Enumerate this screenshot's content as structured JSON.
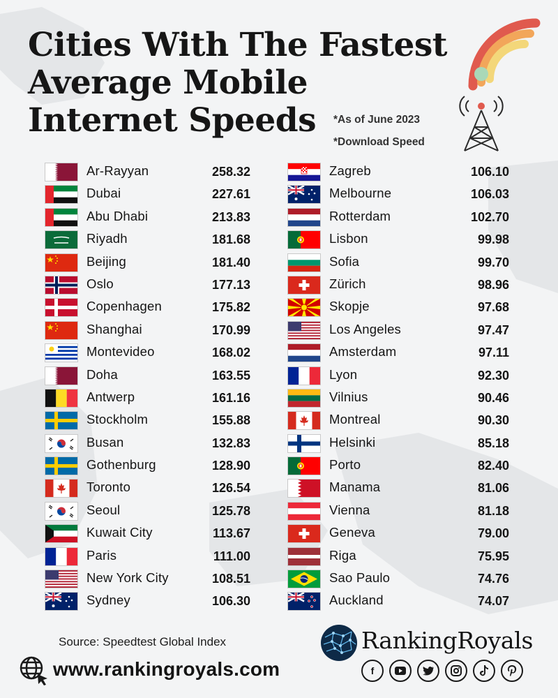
{
  "title": [
    "Cities With The Fastest",
    "Average Mobile",
    "Internet Speeds"
  ],
  "notes": [
    "*As of June 2023",
    "*Download Speed"
  ],
  "left_column": [
    {
      "city": "Ar-Rayyan",
      "speed": "258.32",
      "flag": "qatar"
    },
    {
      "city": "Dubai",
      "speed": "227.61",
      "flag": "uae"
    },
    {
      "city": "Abu Dhabi",
      "speed": "213.83",
      "flag": "uae"
    },
    {
      "city": "Riyadh",
      "speed": "181.68",
      "flag": "saudi"
    },
    {
      "city": "Beijing",
      "speed": "181.40",
      "flag": "china"
    },
    {
      "city": "Oslo",
      "speed": "177.13",
      "flag": "norway"
    },
    {
      "city": "Copenhagen",
      "speed": "175.82",
      "flag": "denmark"
    },
    {
      "city": "Shanghai",
      "speed": "170.99",
      "flag": "china"
    },
    {
      "city": "Montevideo",
      "speed": "168.02",
      "flag": "uruguay"
    },
    {
      "city": "Doha",
      "speed": "163.55",
      "flag": "qatar"
    },
    {
      "city": "Antwerp",
      "speed": "161.16",
      "flag": "belgium"
    },
    {
      "city": "Stockholm",
      "speed": "155.88",
      "flag": "sweden"
    },
    {
      "city": "Busan",
      "speed": "132.83",
      "flag": "korea"
    },
    {
      "city": "Gothenburg",
      "speed": "128.90",
      "flag": "sweden"
    },
    {
      "city": "Toronto",
      "speed": "126.54",
      "flag": "canada"
    },
    {
      "city": "Seoul",
      "speed": "125.78",
      "flag": "korea"
    },
    {
      "city": "Kuwait City",
      "speed": "113.67",
      "flag": "kuwait"
    },
    {
      "city": "Paris",
      "speed": "111.00",
      "flag": "france"
    },
    {
      "city": "New York City",
      "speed": "108.51",
      "flag": "usa"
    },
    {
      "city": "Sydney",
      "speed": "106.30",
      "flag": "australia"
    }
  ],
  "right_column": [
    {
      "city": "Zagreb",
      "speed": "106.10",
      "flag": "croatia"
    },
    {
      "city": "Melbourne",
      "speed": "106.03",
      "flag": "australia"
    },
    {
      "city": "Rotterdam",
      "speed": "102.70",
      "flag": "netherlands"
    },
    {
      "city": "Lisbon",
      "speed": "99.98",
      "flag": "portugal"
    },
    {
      "city": "Sofia",
      "speed": "99.70",
      "flag": "bulgaria"
    },
    {
      "city": "Zürich",
      "speed": "98.96",
      "flag": "switzerland"
    },
    {
      "city": "Skopje",
      "speed": "97.68",
      "flag": "macedonia"
    },
    {
      "city": "Los Angeles",
      "speed": "97.47",
      "flag": "usa"
    },
    {
      "city": "Amsterdam",
      "speed": "97.11",
      "flag": "netherlands"
    },
    {
      "city": "Lyon",
      "speed": "92.30",
      "flag": "france"
    },
    {
      "city": "Vilnius",
      "speed": "90.46",
      "flag": "lithuania"
    },
    {
      "city": "Montreal",
      "speed": "90.30",
      "flag": "canada"
    },
    {
      "city": "Helsinki",
      "speed": "85.18",
      "flag": "finland"
    },
    {
      "city": "Porto",
      "speed": "82.40",
      "flag": "portugal"
    },
    {
      "city": "Manama",
      "speed": "81.06",
      "flag": "bahrain"
    },
    {
      "city": "Vienna",
      "speed": "81.18",
      "flag": "austria"
    },
    {
      "city": "Geneva",
      "speed": "79.00",
      "flag": "switzerland"
    },
    {
      "city": "Riga",
      "speed": "75.95",
      "flag": "latvia"
    },
    {
      "city": "Sao Paulo",
      "speed": "74.76",
      "flag": "brazil"
    },
    {
      "city": "Auckland",
      "speed": "74.07",
      "flag": "newzealand"
    }
  ],
  "footer": {
    "source": "Source: Speedtest Global Index",
    "website": "www.rankingroyals.com",
    "brand": "RankingRoyals",
    "socials": [
      "facebook-icon",
      "youtube-icon",
      "twitter-icon",
      "instagram-icon",
      "tiktok-icon",
      "pinterest-icon"
    ]
  },
  "colors": {
    "background": "#f3f4f5",
    "wifi_red": "#e05a4e",
    "wifi_orange": "#f2a65a",
    "wifi_yellow": "#f3d77a",
    "wifi_green": "#a9d8b8"
  }
}
